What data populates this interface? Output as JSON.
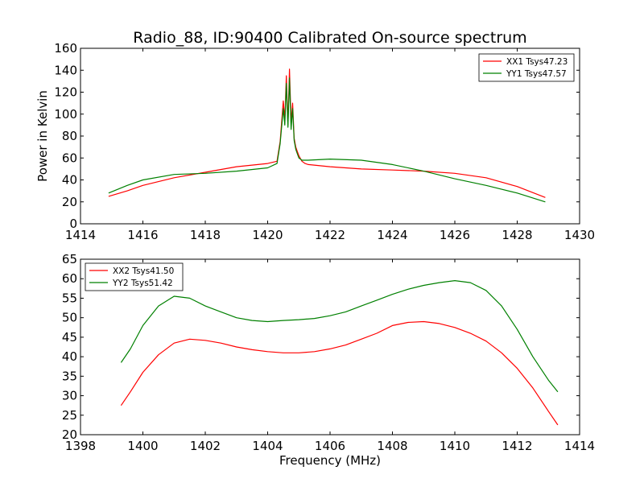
{
  "chart_data": [
    {
      "type": "line",
      "title": "Radio_88, ID:90400 Calibrated On-source spectrum",
      "xlabel": "",
      "ylabel": "Power in Kelvin",
      "xlim": [
        1414,
        1430
      ],
      "ylim": [
        0,
        160
      ],
      "xticks": [
        "1414",
        "1416",
        "1418",
        "1420",
        "1422",
        "1424",
        "1426",
        "1428",
        "1430"
      ],
      "yticks": [
        "0",
        "20",
        "40",
        "60",
        "80",
        "100",
        "120",
        "140",
        "160"
      ],
      "legend": "top-right",
      "series": [
        {
          "name": "XX1 Tsys47.23",
          "color": "#ff0000",
          "x": [
            1414.9,
            1415.5,
            1416,
            1417,
            1418,
            1419,
            1420,
            1420.3,
            1420.4,
            1420.5,
            1420.55,
            1420.6,
            1420.65,
            1420.7,
            1420.75,
            1420.8,
            1420.85,
            1420.9,
            1420.95,
            1421.0,
            1421.1,
            1421.2,
            1421.3,
            1422,
            1423,
            1424,
            1425,
            1426,
            1427,
            1428,
            1428.9
          ],
          "y": [
            25,
            30,
            35,
            42,
            47,
            52,
            55,
            57,
            75,
            112,
            95,
            135,
            90,
            141,
            92,
            110,
            78,
            70,
            66,
            62,
            57,
            55,
            54,
            52,
            50,
            49,
            48,
            46,
            42,
            34,
            24
          ]
        },
        {
          "name": "YY1 Tsys47.57",
          "color": "#008000",
          "x": [
            1414.9,
            1415.5,
            1416,
            1417,
            1418,
            1419,
            1420,
            1420.3,
            1420.4,
            1420.5,
            1420.55,
            1420.6,
            1420.65,
            1420.7,
            1420.75,
            1420.8,
            1420.85,
            1420.9,
            1420.95,
            1421.0,
            1421.1,
            1421.2,
            1421.3,
            1422,
            1423,
            1424,
            1425,
            1426,
            1427,
            1428,
            1428.9
          ],
          "y": [
            28,
            35,
            40,
            45,
            46,
            48,
            51,
            55,
            73,
            105,
            90,
            128,
            88,
            133,
            86,
            105,
            76,
            68,
            64,
            60,
            58,
            58,
            58,
            59,
            58,
            54,
            48,
            41,
            35,
            28,
            20
          ]
        }
      ]
    },
    {
      "type": "line",
      "title": "",
      "xlabel": "Frequency (MHz)",
      "ylabel": "",
      "xlim": [
        1398,
        1414
      ],
      "ylim": [
        20,
        65
      ],
      "xticks": [
        "1398",
        "1400",
        "1402",
        "1404",
        "1406",
        "1408",
        "1410",
        "1412",
        "1414"
      ],
      "yticks": [
        "20",
        "25",
        "30",
        "35",
        "40",
        "45",
        "50",
        "55",
        "60",
        "65"
      ],
      "legend": "top-left",
      "series": [
        {
          "name": "XX2 Tsys41.50",
          "color": "#ff0000",
          "x": [
            1399.3,
            1399.6,
            1400,
            1400.5,
            1401,
            1401.5,
            1402,
            1402.5,
            1403,
            1403.5,
            1404,
            1404.5,
            1405,
            1405.5,
            1406,
            1406.5,
            1407,
            1407.5,
            1408,
            1408.5,
            1409,
            1409.5,
            1410,
            1410.5,
            1411,
            1411.5,
            1412,
            1412.5,
            1413,
            1413.3
          ],
          "y": [
            27.5,
            31,
            36,
            40.5,
            43.5,
            44.5,
            44.2,
            43.5,
            42.5,
            41.8,
            41.3,
            41.0,
            41.0,
            41.3,
            42,
            43,
            44.5,
            46,
            48,
            48.8,
            49,
            48.5,
            47.5,
            46,
            44,
            41,
            37,
            32,
            26,
            22.5
          ]
        },
        {
          "name": "YY2 Tsys51.42",
          "color": "#008000",
          "x": [
            1399.3,
            1399.6,
            1400,
            1400.5,
            1401,
            1401.5,
            1402,
            1402.5,
            1403,
            1403.5,
            1404,
            1404.5,
            1405,
            1405.5,
            1406,
            1406.5,
            1407,
            1407.5,
            1408,
            1408.5,
            1409,
            1409.5,
            1410,
            1410.5,
            1411,
            1411.5,
            1412,
            1412.5,
            1413,
            1413.3
          ],
          "y": [
            38.5,
            42,
            48,
            53,
            55.5,
            55,
            53,
            51.5,
            50,
            49.3,
            49,
            49.3,
            49.5,
            49.8,
            50.5,
            51.5,
            53,
            54.5,
            56,
            57.3,
            58.3,
            59,
            59.5,
            59,
            57,
            53,
            47,
            40,
            34,
            31
          ]
        }
      ]
    }
  ]
}
